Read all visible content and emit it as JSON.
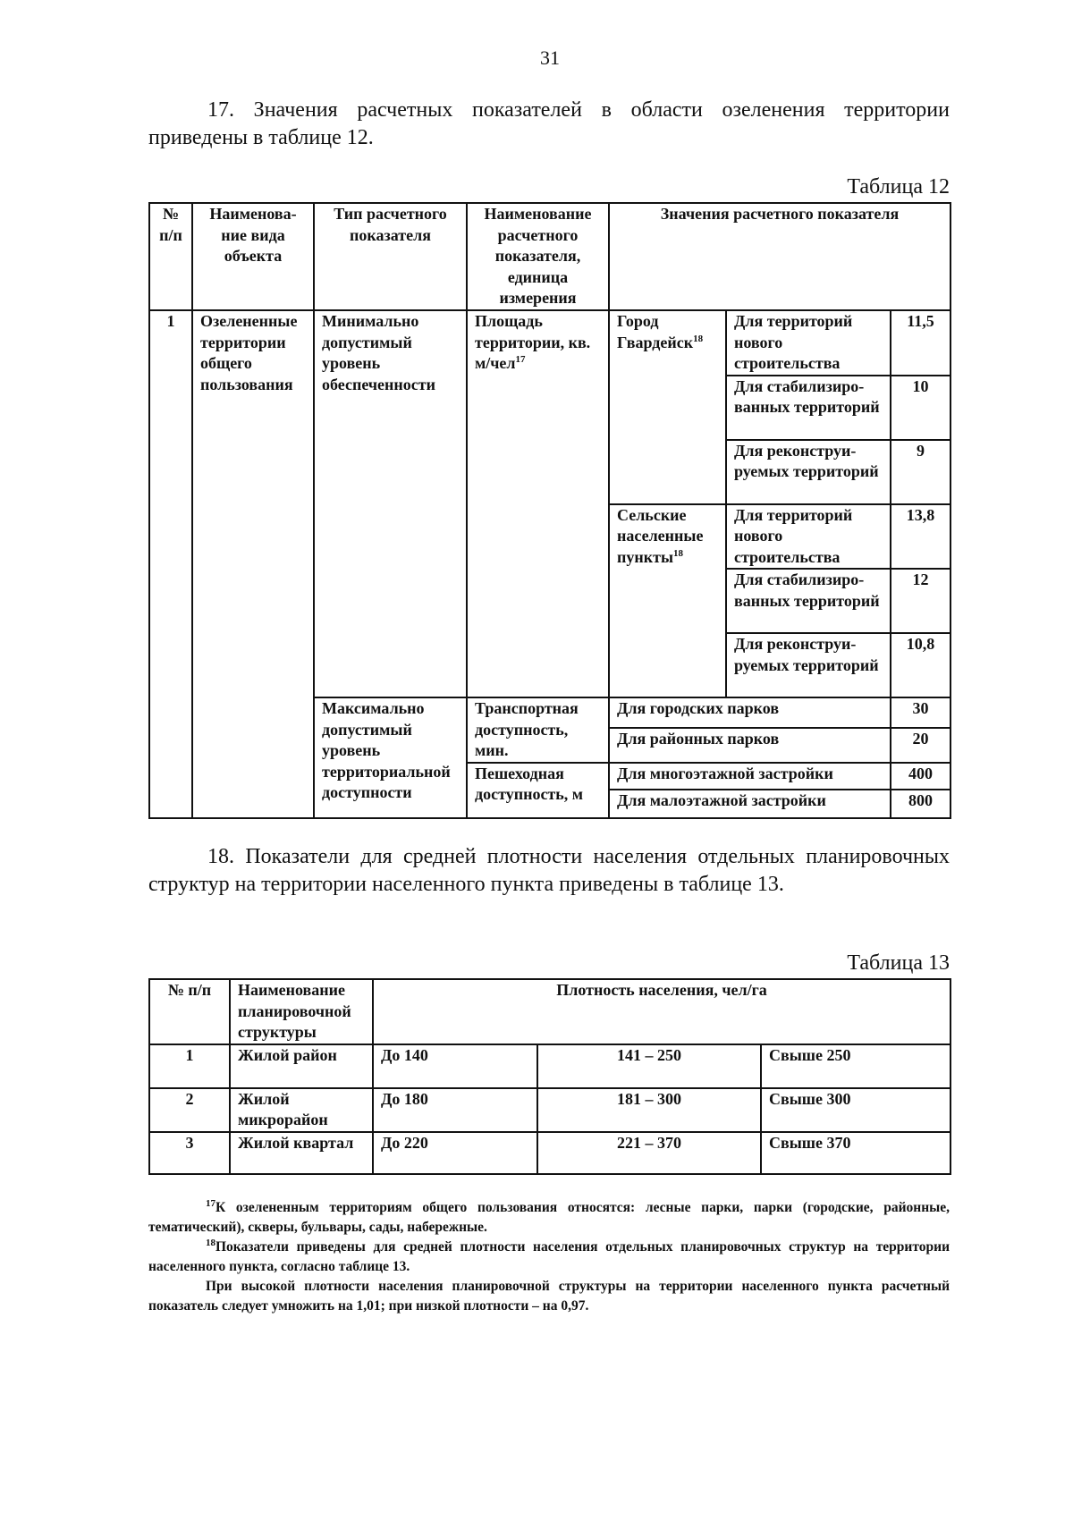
{
  "page_number": "31",
  "paragraph_17": "17. Значения расчетных показателей в области озеленения территории приведены в таблице 12.",
  "table12": {
    "caption": "Таблица 12",
    "headers": [
      "№ п/п",
      "Наименова-ние вида объекта",
      "Тип расчетного показателя",
      "Наименование расчетного показателя, единица измерения",
      "Значения расчетного показателя"
    ],
    "row_num": "1",
    "object": "Озелененные территории общего пользования",
    "min_type": "Минимально допустимый уровень обеспеченности",
    "min_indicator": "Площадь территории, кв. м/чел",
    "min_indicator_note": "17",
    "groups": [
      {
        "name": "Город Гвардейск",
        "note": "18",
        "items": [
          {
            "label": "Для территорий нового строительства",
            "value": "11,5"
          },
          {
            "label": "Для стабилизиро-ванных территорий",
            "value": "10"
          },
          {
            "label": "Для реконструи-руемых территорий",
            "value": "9"
          }
        ]
      },
      {
        "name": "Сельские населенные пункты",
        "note": "18",
        "items": [
          {
            "label": "Для территорий нового строительства",
            "value": "13,8"
          },
          {
            "label": "Для стабилизиро-ванных территорий",
            "value": "12"
          },
          {
            "label": "Для реконструи-руемых территорий",
            "value": "10,8"
          }
        ]
      }
    ],
    "max_type": "Максимально допустимый уровень территориальной доступности",
    "transport": "Транспортная доступность, мин.",
    "walking": "Пешеходная доступность, м",
    "access_rows": [
      {
        "label": "Для городских парков",
        "value": "30"
      },
      {
        "label": "Для районных парков",
        "value": "20"
      },
      {
        "label": "Для многоэтажной застройки",
        "value": "400"
      },
      {
        "label": "Для малоэтажной застройки",
        "value": "800"
      }
    ]
  },
  "paragraph_18": "18. Показатели для средней плотности населения отдельных планировочных структур на территории населенного пункта приведены в таблице 13.",
  "table13": {
    "caption": "Таблица 13",
    "headers": [
      "№ п/п",
      "Наименование планировочной структуры",
      "Плотность населения, чел/га"
    ],
    "rows": [
      [
        "1",
        "Жилой район",
        "До 140",
        "141 – 250",
        "Свыше 250"
      ],
      [
        "2",
        "Жилой микрорайон",
        "До 180",
        "181 – 300",
        "Свыше 300"
      ],
      [
        "3",
        "Жилой квартал",
        "До 220",
        "221 – 370",
        "Свыше 370"
      ]
    ]
  },
  "footnotes": [
    {
      "mark": "17",
      "text": "К озелененным территориям общего пользования относятся: лесные парки, парки (городские, районные, тематический), скверы, бульвары, сады, набережные."
    },
    {
      "mark": "18",
      "text": "Показатели приведены для средней плотности населения отдельных планировочных структур на территории населенного пункта, согласно таблице 13."
    },
    {
      "mark": "",
      "text": "При высокой плотности населения планировочной структуры на территории населенного пункта расчетный показатель следует умножить на 1,01; при низкой плотности – на 0,97."
    }
  ]
}
